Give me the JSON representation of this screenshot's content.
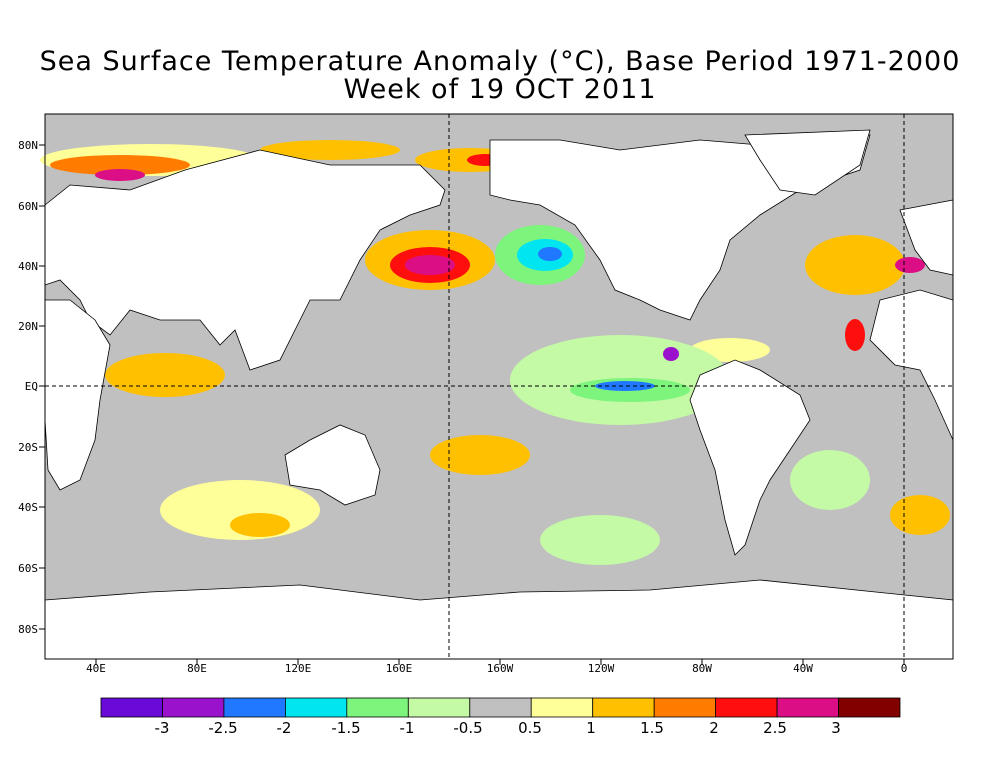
{
  "title_line1": "Sea Surface Temperature Anomaly (°C), Base Period 1971-2000",
  "title_line2": "Week of 19 OCT 2011",
  "lat_labels": [
    "80N",
    "60N",
    "40N",
    "20N",
    "EQ",
    "20S",
    "40S",
    "60S",
    "80S"
  ],
  "lon_labels": [
    "40E",
    "80E",
    "120E",
    "160E",
    "160W",
    "120W",
    "80W",
    "40W",
    "0"
  ],
  "colorbar": {
    "bins": [
      {
        "color": "#6a0ad8"
      },
      {
        "color": "#9b12cc"
      },
      {
        "color": "#1f78ff"
      },
      {
        "color": "#00e5ef"
      },
      {
        "color": "#7df57d"
      },
      {
        "color": "#c4f9a6"
      },
      {
        "color": "#c0c0c0"
      },
      {
        "color": "#ffff9a"
      },
      {
        "color": "#ffc000"
      },
      {
        "color": "#ff7c00"
      },
      {
        "color": "#ff0e0e"
      },
      {
        "color": "#dc0e86"
      },
      {
        "color": "#820000"
      }
    ],
    "tick_labels": [
      "-3",
      "-2.5",
      "-2",
      "-1.5",
      "-1",
      "-0.5",
      "0.5",
      "1",
      "1.5",
      "2",
      "2.5",
      "3"
    ]
  },
  "colors": {
    "ocean_neutral": "#c0c0c0",
    "land": "#ffffff",
    "coast": "#000000"
  }
}
